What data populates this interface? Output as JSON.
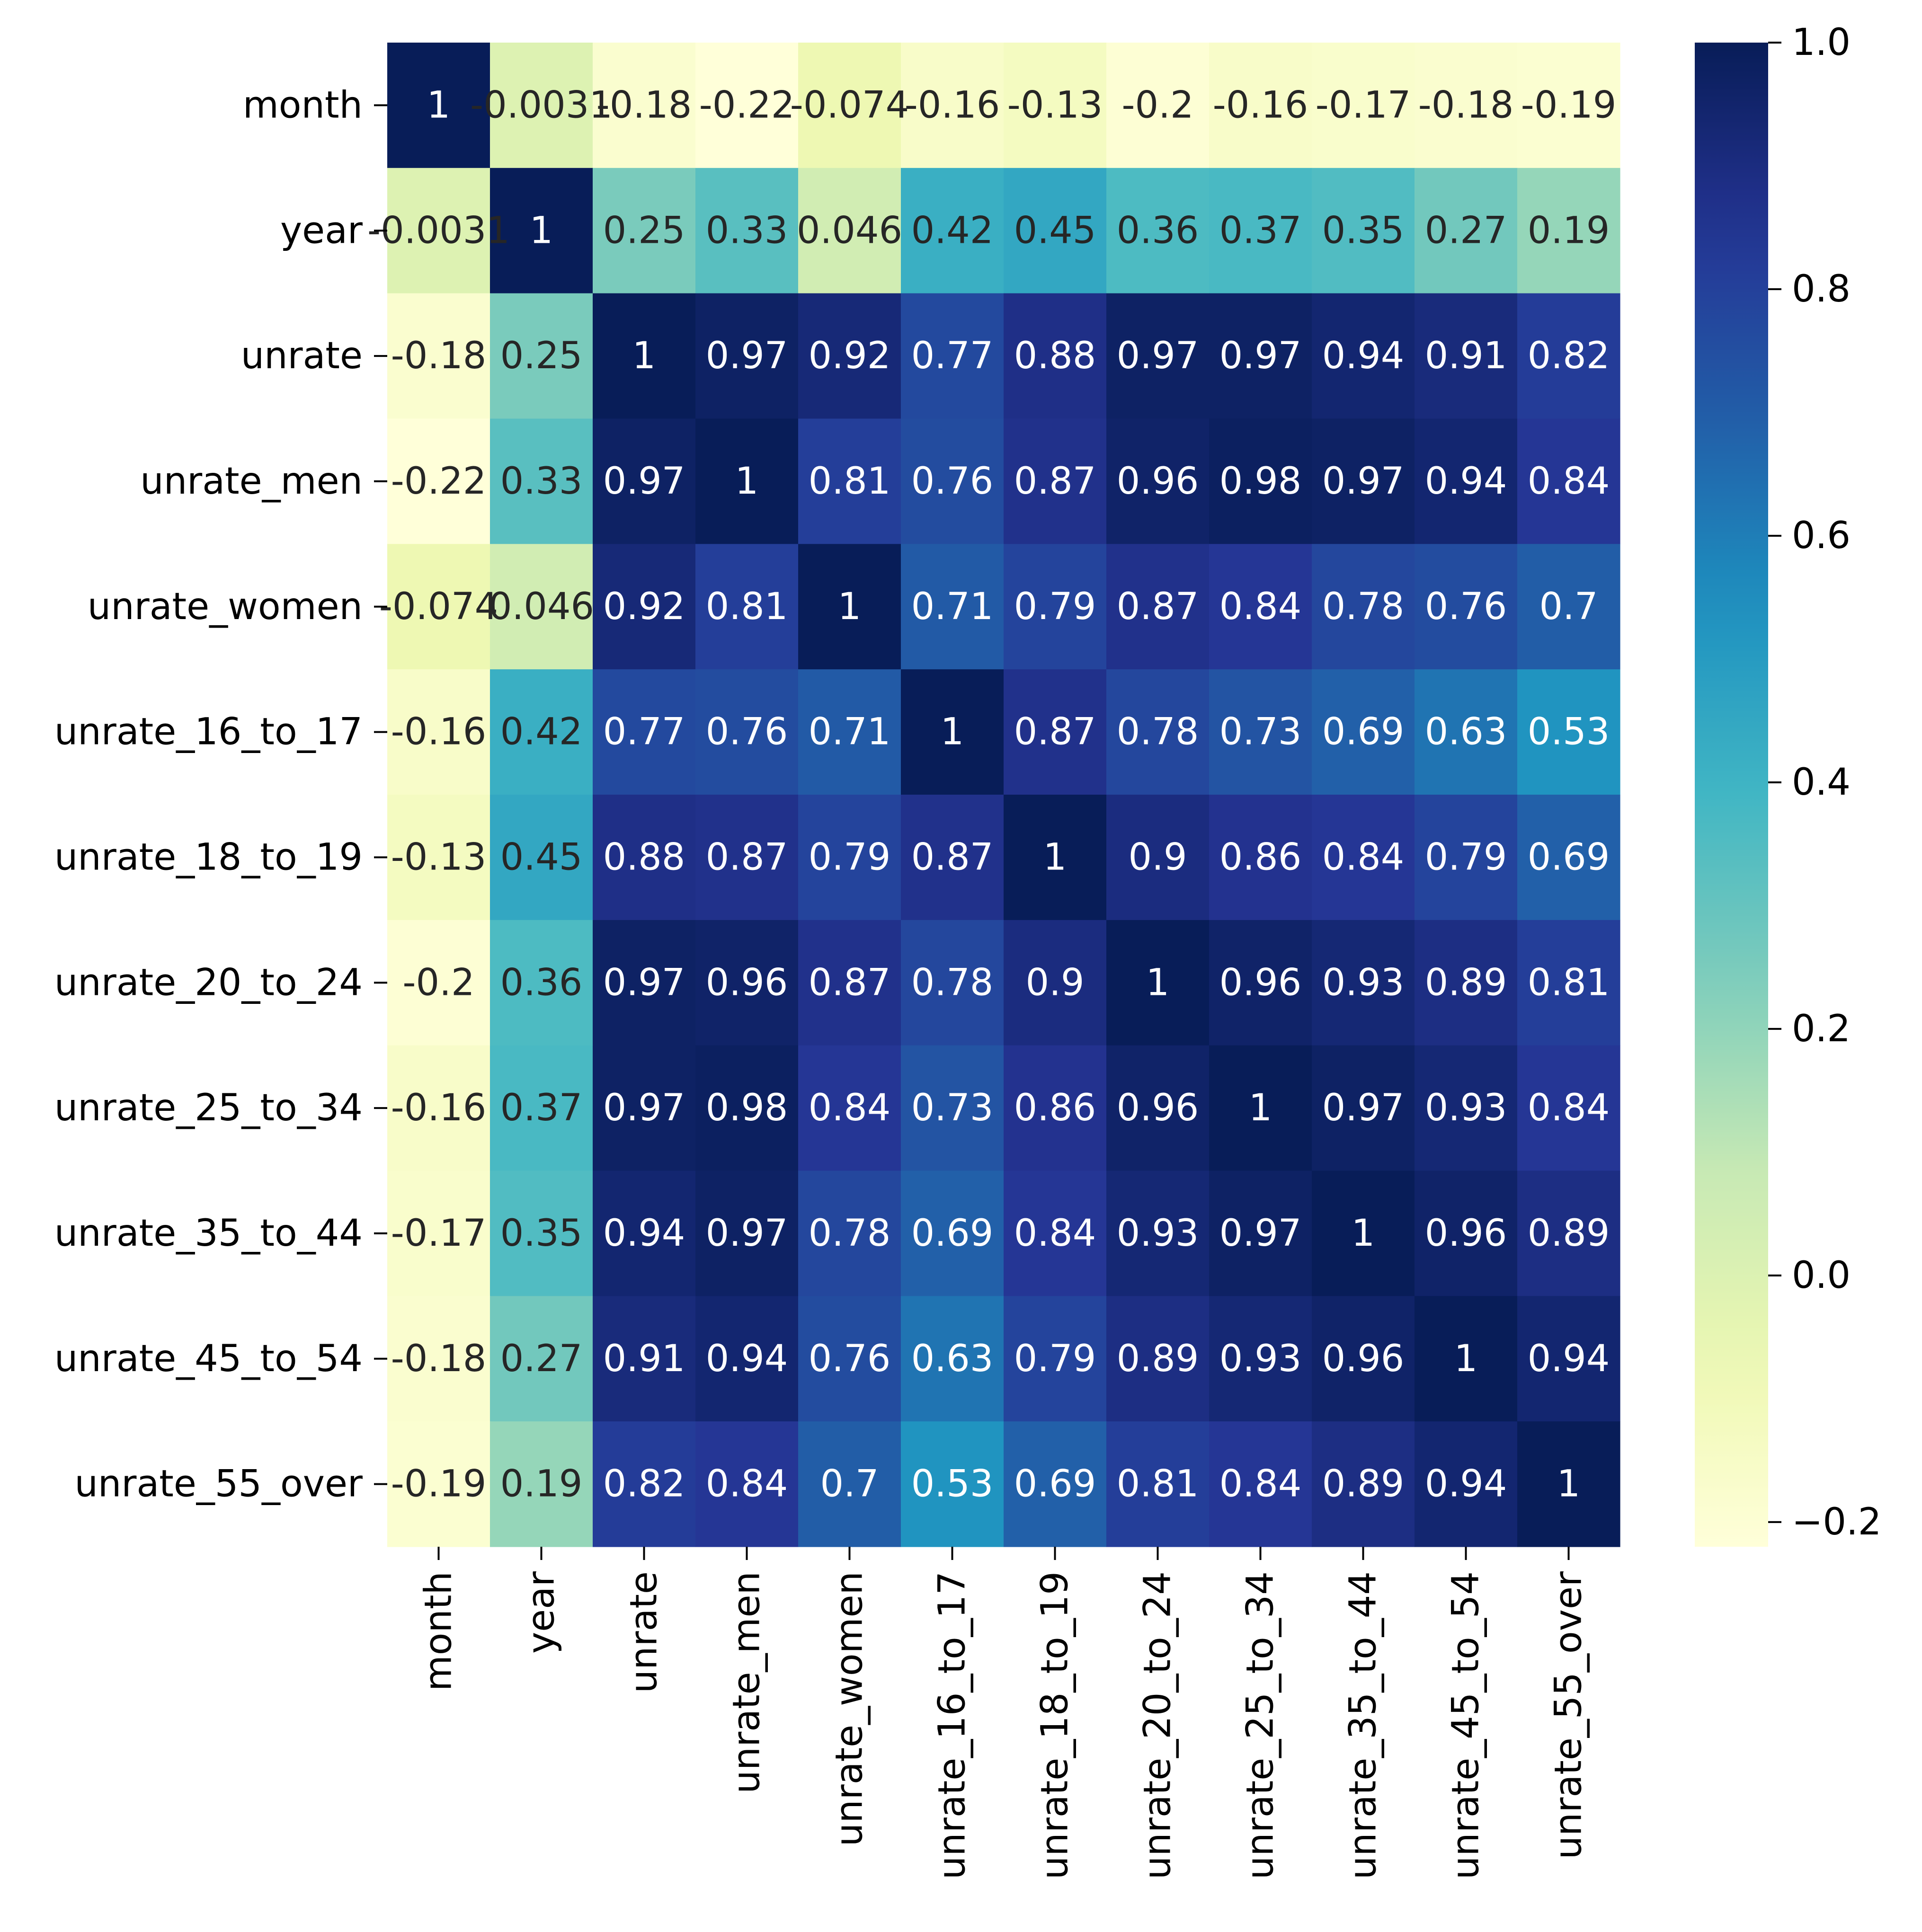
{
  "chart_data": {
    "type": "heatmap",
    "title": "",
    "xlabel": "",
    "ylabel": "",
    "row_labels": [
      "month",
      "year",
      "unrate",
      "unrate_men",
      "unrate_women",
      "unrate_16_to_17",
      "unrate_18_to_19",
      "unrate_20_to_24",
      "unrate_25_to_34",
      "unrate_35_to_44",
      "unrate_45_to_54",
      "unrate_55_over"
    ],
    "col_labels": [
      "month",
      "year",
      "unrate",
      "unrate_men",
      "unrate_women",
      "unrate_16_to_17",
      "unrate_18_to_19",
      "unrate_20_to_24",
      "unrate_25_to_34",
      "unrate_35_to_44",
      "unrate_45_to_54",
      "unrate_55_over"
    ],
    "values": [
      [
        1,
        -0.0031,
        -0.18,
        -0.22,
        -0.074,
        -0.16,
        -0.13,
        -0.2,
        -0.16,
        -0.17,
        -0.18,
        -0.19
      ],
      [
        -0.0031,
        1,
        0.25,
        0.33,
        0.046,
        0.42,
        0.45,
        0.36,
        0.37,
        0.35,
        0.27,
        0.19
      ],
      [
        -0.18,
        0.25,
        1,
        0.97,
        0.92,
        0.77,
        0.88,
        0.97,
        0.97,
        0.94,
        0.91,
        0.82
      ],
      [
        -0.22,
        0.33,
        0.97,
        1,
        0.81,
        0.76,
        0.87,
        0.96,
        0.98,
        0.97,
        0.94,
        0.84
      ],
      [
        -0.074,
        0.046,
        0.92,
        0.81,
        1,
        0.71,
        0.79,
        0.87,
        0.84,
        0.78,
        0.76,
        0.7
      ],
      [
        -0.16,
        0.42,
        0.77,
        0.76,
        0.71,
        1,
        0.87,
        0.78,
        0.73,
        0.69,
        0.63,
        0.53
      ],
      [
        -0.13,
        0.45,
        0.88,
        0.87,
        0.79,
        0.87,
        1,
        0.9,
        0.86,
        0.84,
        0.79,
        0.69
      ],
      [
        -0.2,
        0.36,
        0.97,
        0.96,
        0.87,
        0.78,
        0.9,
        1,
        0.96,
        0.93,
        0.89,
        0.81
      ],
      [
        -0.16,
        0.37,
        0.97,
        0.98,
        0.84,
        0.73,
        0.86,
        0.96,
        1,
        0.97,
        0.93,
        0.84
      ],
      [
        -0.17,
        0.35,
        0.94,
        0.97,
        0.78,
        0.69,
        0.84,
        0.93,
        0.97,
        1,
        0.96,
        0.89
      ],
      [
        -0.18,
        0.27,
        0.91,
        0.94,
        0.76,
        0.63,
        0.79,
        0.89,
        0.93,
        0.96,
        1,
        0.94
      ],
      [
        -0.19,
        0.19,
        0.82,
        0.84,
        0.7,
        0.53,
        0.69,
        0.81,
        0.84,
        0.89,
        0.94,
        1
      ]
    ],
    "vmin": -0.22,
    "vmax": 1,
    "colormap": "YlGnBu",
    "colorbar_ticks": [
      1.0,
      0.8,
      0.6,
      0.4,
      0.2,
      0.0,
      -0.2
    ],
    "colorbar_tick_labels": [
      "1.0",
      "0.8",
      "0.6",
      "0.4",
      "0.2",
      "0.0",
      "−0.2"
    ],
    "annotated": true,
    "grid": false,
    "legend": "colorbar-right"
  }
}
